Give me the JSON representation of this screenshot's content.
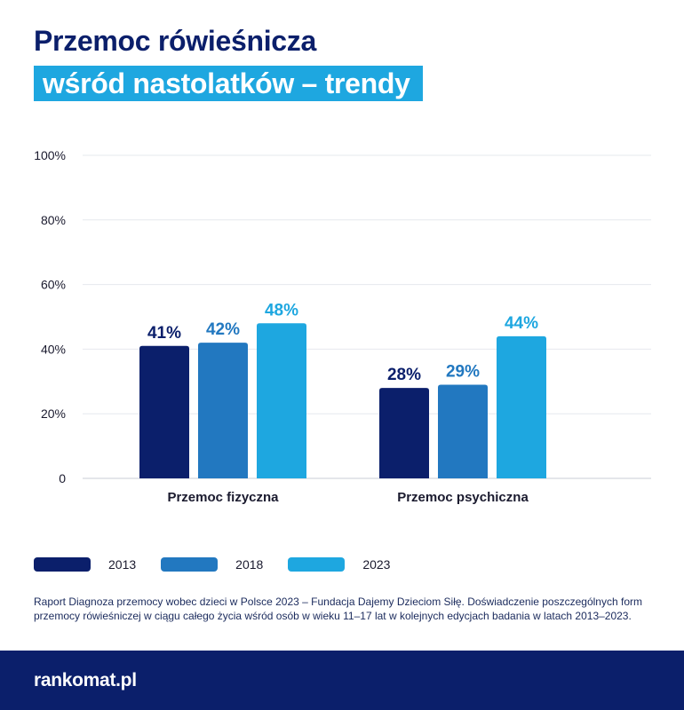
{
  "title": {
    "line1": "Przemoc rówieśnicza",
    "line2": "wśród nastolatków – trendy"
  },
  "chart_data": {
    "type": "bar",
    "categories": [
      "Przemoc fizyczna",
      "Przemoc psychiczna"
    ],
    "series": [
      {
        "name": "2013",
        "values": [
          41,
          28
        ],
        "labels": [
          "41%",
          "28%"
        ],
        "color": "#0b1f6b",
        "label_color": "#0b1f6b"
      },
      {
        "name": "2018",
        "values": [
          42,
          29
        ],
        "labels": [
          "42%",
          "29%"
        ],
        "color": "#2278c0",
        "label_color": "#2278c0"
      },
      {
        "name": "2023",
        "values": [
          48,
          44
        ],
        "labels": [
          "48%",
          "44%"
        ],
        "color": "#1ea7e0",
        "label_color": "#1ea7e0"
      }
    ],
    "yticks": [
      "0",
      "20%",
      "40%",
      "60%",
      "80%",
      "100%"
    ],
    "ylim": [
      0,
      100
    ],
    "grid": true,
    "legend_position": "bottom-left"
  },
  "source": "Raport Diagnoza przemocy wobec dzieci w Polsce 2023 – Fundacja Dajemy Dzieciom Siłę. Doświadczenie poszczególnych form przemocy rówieśniczej w ciągu całego życia wśród osób w wieku 11–17 lat w kolejnych edycjach badania w latach 2013–2023.",
  "footer": {
    "logo": "rankomat.pl"
  },
  "colors": {
    "navy": "#0b1f6b",
    "mid_blue": "#2278c0",
    "light_blue": "#1ea7e0"
  }
}
